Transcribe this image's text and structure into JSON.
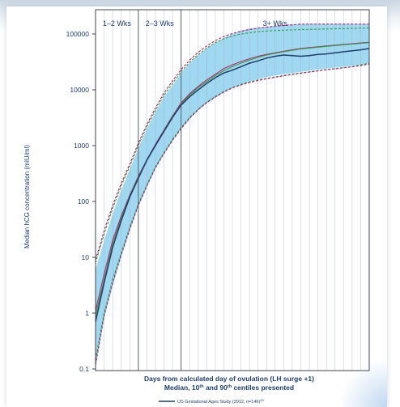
{
  "chart_data": {
    "type": "line",
    "ylabel": "Median hCG concentration (mIU/ml)",
    "xlabel": "Days from calculated day of ovulation (LH surge +1)",
    "subtitle": "Median, 10th and 90th centiles presented",
    "yscale": "log",
    "ylim": [
      0.1,
      150000
    ],
    "yticks": [
      0.1,
      1,
      10,
      100,
      1000,
      10000,
      100000
    ],
    "ytick_labels": [
      "0.1",
      "1",
      "10",
      "100",
      "1000",
      "10000",
      "100000"
    ],
    "xlim": [
      9,
      41
    ],
    "grid": "vertical",
    "periods": [
      {
        "label": "1–2 Wks",
        "start": 9,
        "end": 14
      },
      {
        "label": "2–3 Wks",
        "start": 14,
        "end": 19
      },
      {
        "label": "3+ Wks",
        "start": 19,
        "end": 41
      }
    ],
    "legend": [
      {
        "label": "US Gestational Ages Study (2012, n=146)",
        "ref": "20"
      }
    ],
    "band": {
      "x": [
        9,
        10,
        11,
        12,
        13,
        14,
        15,
        16,
        17,
        18,
        19,
        20,
        21,
        22,
        23,
        24,
        25,
        26,
        27,
        28,
        29,
        30,
        31,
        32,
        33,
        34,
        35,
        36,
        37,
        38,
        39,
        40,
        41
      ],
      "upper": [
        6,
        20,
        60,
        160,
        380,
        900,
        2000,
        4000,
        7500,
        12000,
        20000,
        30000,
        42000,
        55000,
        70000,
        85000,
        100000,
        115000,
        125000,
        130000,
        135000,
        140000,
        145000,
        150000,
        150000,
        150000,
        150000,
        150000,
        150000,
        150000,
        150000,
        150000,
        150000
      ],
      "lower": [
        0.1,
        0.8,
        3,
        10,
        30,
        80,
        180,
        380,
        700,
        1200,
        2000,
        3000,
        4300,
        5700,
        7200,
        9000,
        11000,
        12500,
        14000,
        15500,
        17000,
        18000,
        19000,
        20000,
        21000,
        22000,
        23000,
        24000,
        25000,
        26000,
        27000,
        28000,
        30000
      ]
    },
    "series": [
      {
        "name": "US Gestational Ages Study (2012, n=146)",
        "color": "#1f3d6b",
        "style": "solid",
        "x": [
          9,
          10,
          11,
          12,
          13,
          14,
          15,
          16,
          17,
          18,
          19,
          20,
          21,
          22,
          23,
          24,
          25,
          26,
          27,
          28,
          29,
          30,
          31,
          32,
          33,
          34,
          35,
          36,
          37,
          38,
          39,
          40,
          41
        ],
        "values": [
          0.7,
          3.5,
          15,
          45,
          120,
          260,
          550,
          1000,
          1800,
          3200,
          5300,
          7500,
          10000,
          13000,
          16500,
          20000,
          22500,
          26000,
          30000,
          33000,
          37000,
          40000,
          42000,
          41000,
          40000,
          41000,
          43000,
          44000,
          46000,
          48000,
          50000,
          52000,
          55000
        ]
      },
      {
        "color": "#b0226a",
        "style": "solid",
        "x": [
          9,
          10,
          11,
          12,
          13,
          14,
          15,
          16,
          17,
          18,
          19,
          20,
          21,
          22,
          23,
          24,
          25,
          26,
          27,
          28,
          29,
          30,
          31,
          32,
          33,
          34,
          35,
          36,
          37,
          38,
          39,
          40,
          41
        ],
        "values": [
          1.1,
          5,
          20,
          55,
          130,
          280,
          560,
          1050,
          1900,
          3400,
          5800,
          8500,
          11500,
          15000,
          19000,
          24000,
          28000,
          32000,
          36000,
          40000,
          43000,
          46000,
          49000,
          52000,
          55000,
          57000,
          59000,
          61000,
          63000,
          65000,
          67000,
          69000,
          71000
        ]
      },
      {
        "color": "#3a9a4a",
        "style": "solid",
        "x": [
          9,
          10,
          11,
          12,
          13,
          14,
          15,
          16,
          17,
          18,
          19,
          20,
          21,
          22,
          23,
          24,
          25,
          26,
          27,
          28,
          29,
          30,
          31,
          32,
          33,
          34,
          35,
          36,
          37,
          38,
          39,
          40,
          41
        ],
        "values": [
          0.9,
          4,
          17,
          50,
          125,
          270,
          540,
          1000,
          1850,
          3300,
          5500,
          8000,
          11000,
          14000,
          18000,
          22000,
          26000,
          30000,
          34000,
          38000,
          42000,
          45000,
          48000,
          51000,
          54000,
          56000,
          58000,
          60000,
          62000,
          64000,
          66000,
          68000,
          70000
        ]
      },
      {
        "color": "#3a9a4a",
        "style": "dashed",
        "x": [
          9,
          10,
          11,
          12,
          13,
          14,
          15,
          16,
          17,
          18,
          19,
          20,
          21,
          22,
          23,
          24,
          25,
          26,
          27,
          28,
          29,
          30,
          31,
          32,
          33,
          34,
          35,
          36,
          37,
          38,
          39,
          40,
          41
        ],
        "values": [
          8,
          26,
          75,
          190,
          430,
          1000,
          2200,
          4300,
          8000,
          13000,
          21000,
          31000,
          43000,
          56000,
          70000,
          82000,
          92000,
          100000,
          105000,
          110000,
          113000,
          115000,
          117000,
          118000,
          120000,
          121000,
          122000,
          123000,
          124000,
          125000,
          126000,
          127000,
          128000
        ]
      },
      {
        "color": "#3a9a4a",
        "style": "dashed",
        "x": [
          9,
          10,
          11,
          12,
          13,
          14,
          15,
          16,
          17,
          18,
          19,
          20,
          21,
          22,
          23,
          24,
          25,
          26,
          27,
          28,
          29,
          30,
          31,
          32,
          33,
          34,
          35,
          36,
          37,
          38,
          39,
          40,
          41
        ],
        "values": [
          0.15,
          1,
          4,
          12,
          35,
          90,
          200,
          420,
          750,
          1300,
          2100,
          3200,
          4500,
          6000,
          7600,
          9300,
          11000,
          12500,
          13800,
          15000,
          16000,
          17000,
          18000,
          19000,
          20000,
          21000,
          22000,
          23000,
          24000,
          25000,
          26000,
          28000,
          30000
        ]
      },
      {
        "color": "#b0226a",
        "style": "dashed",
        "x": [
          9,
          10,
          11,
          12,
          13,
          14,
          15,
          16,
          17,
          18,
          19,
          20,
          21,
          22,
          23,
          24,
          25,
          26,
          27,
          28,
          29,
          30,
          31,
          32,
          33,
          34,
          35,
          36,
          37,
          38,
          39,
          40,
          41
        ],
        "values": [
          9,
          30,
          85,
          210,
          470,
          1100,
          2400,
          4700,
          8800,
          14500,
          23000,
          34000,
          47000,
          61000,
          76000,
          90000,
          102000,
          112000,
          120000,
          127000,
          133000,
          138000,
          142000,
          146000,
          150000,
          150000,
          150000,
          150000,
          150000,
          150000,
          150000,
          150000,
          150000
        ]
      },
      {
        "color": "#b0226a",
        "style": "dashed",
        "x": [
          9,
          10,
          11,
          12,
          13,
          14,
          15,
          16,
          17,
          18,
          19,
          20,
          21,
          22,
          23,
          24,
          25,
          26,
          27,
          28,
          29,
          30,
          31,
          32,
          33,
          34,
          35,
          36,
          37,
          38,
          39,
          40,
          41
        ],
        "values": [
          0.12,
          0.9,
          3.5,
          11,
          32,
          85,
          190,
          400,
          720,
          1250,
          2000,
          3100,
          4400,
          5900,
          7400,
          9100,
          10800,
          12200,
          13500,
          14700,
          15800,
          16800,
          17800,
          18800,
          19800,
          20800,
          21800,
          22800,
          23800,
          24800,
          25800,
          27000,
          29000
        ]
      }
    ]
  }
}
